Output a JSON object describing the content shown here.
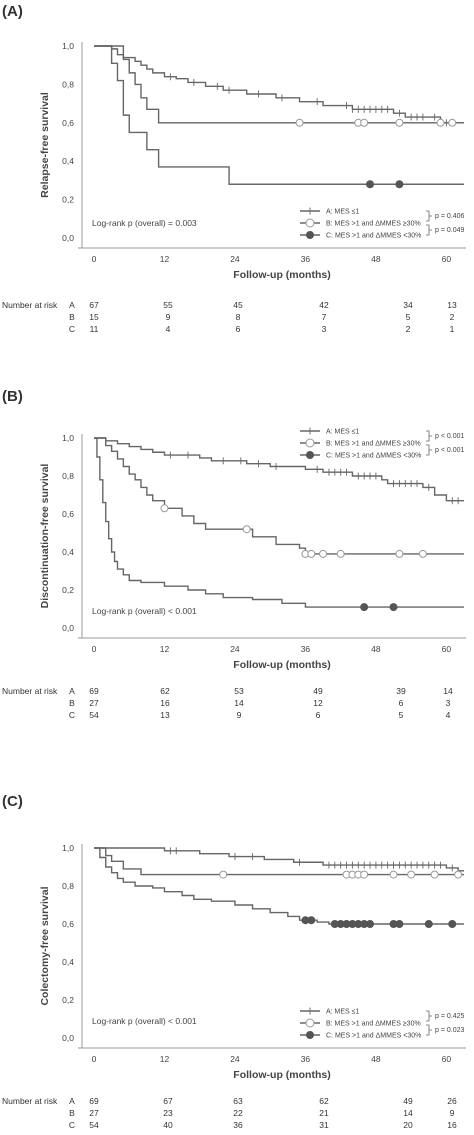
{
  "chart_data": [
    {
      "type": "line",
      "panel_label": "(A)",
      "ylabel": "Relapse-free survival",
      "xlabel": "Follow-up (months)",
      "x_ticks": [
        "0",
        "12",
        "24",
        "36",
        "48",
        "60"
      ],
      "y_ticks": [
        "0,0",
        "0,2",
        "0,4",
        "0,6",
        "0,8",
        "1,0"
      ],
      "xlim": [
        0,
        63
      ],
      "ylim": [
        0,
        1
      ],
      "logrank_text": "Log-rank p (overall) = 0.003",
      "legend_position": "bottom-right",
      "series": [
        {
          "name": "A: MES ≤1",
          "marker": "plus",
          "steps": [
            [
              0,
              1.0
            ],
            [
              3,
              0.985
            ],
            [
              4,
              0.955
            ],
            [
              5,
              0.94
            ],
            [
              7,
              0.92
            ],
            [
              8,
              0.9
            ],
            [
              9,
              0.88
            ],
            [
              10,
              0.86
            ],
            [
              12,
              0.84
            ],
            [
              14,
              0.83
            ],
            [
              16,
              0.81
            ],
            [
              19,
              0.79
            ],
            [
              22,
              0.77
            ],
            [
              26,
              0.75
            ],
            [
              31,
              0.73
            ],
            [
              35,
              0.71
            ],
            [
              39,
              0.69
            ],
            [
              44,
              0.67
            ],
            [
              51,
              0.65
            ],
            [
              53,
              0.63
            ],
            [
              57,
              0.63
            ],
            [
              59,
              0.6
            ],
            [
              63,
              0.6
            ]
          ],
          "censored": [
            13,
            17,
            21,
            23,
            28,
            32,
            38,
            43,
            44,
            45,
            46,
            47,
            48,
            49,
            50,
            52,
            54,
            55,
            56,
            58,
            60
          ]
        },
        {
          "name": "B: MES >1 and ΔMMES ≥30%",
          "marker": "open-circle",
          "steps": [
            [
              0,
              1.0
            ],
            [
              5,
              0.93
            ],
            [
              6,
              0.86
            ],
            [
              7,
              0.8
            ],
            [
              8,
              0.73
            ],
            [
              9,
              0.67
            ],
            [
              11,
              0.6
            ],
            [
              63,
              0.6
            ]
          ],
          "censored": [
            35,
            45,
            46,
            52,
            59,
            61
          ]
        },
        {
          "name": "C: MES >1 and ΔMMES <30%",
          "marker": "filled-circle",
          "steps": [
            [
              0,
              1.0
            ],
            [
              3,
              0.91
            ],
            [
              4,
              0.82
            ],
            [
              5,
              0.64
            ],
            [
              6,
              0.55
            ],
            [
              9,
              0.46
            ],
            [
              11,
              0.37
            ],
            [
              23,
              0.28
            ],
            [
              63,
              0.28
            ]
          ],
          "censored": [
            47,
            52
          ]
        }
      ],
      "pairwise_p": [
        "p = 0.406",
        "p = 0.049"
      ],
      "risk_table": {
        "header": "Number at risk",
        "rows": [
          {
            "label": "A",
            "values": [
              "67",
              "55",
              "45",
              "42",
              "34",
              "13"
            ]
          },
          {
            "label": "B",
            "values": [
              "15",
              "9",
              "8",
              "7",
              "5",
              "2"
            ]
          },
          {
            "label": "C",
            "values": [
              "11",
              "4",
              "6",
              "3",
              "2",
              "1"
            ]
          }
        ]
      }
    },
    {
      "type": "line",
      "panel_label": "(B)",
      "ylabel": "Discontinuation-free survival",
      "xlabel": "Follow-up (months)",
      "x_ticks": [
        "0",
        "12",
        "24",
        "36",
        "48",
        "60"
      ],
      "y_ticks": [
        "0,0",
        "0,2",
        "0,4",
        "0,6",
        "0,8",
        "1,0"
      ],
      "xlim": [
        0,
        63
      ],
      "ylim": [
        0,
        1
      ],
      "logrank_text": "Log-rank p (overall) < 0.001",
      "legend_position": "top-right",
      "series": [
        {
          "name": "A: MES ≤1",
          "marker": "plus",
          "steps": [
            [
              0,
              1.0
            ],
            [
              2,
              0.985
            ],
            [
              4,
              0.97
            ],
            [
              6,
              0.955
            ],
            [
              8,
              0.94
            ],
            [
              10,
              0.925
            ],
            [
              12,
              0.91
            ],
            [
              18,
              0.895
            ],
            [
              20,
              0.88
            ],
            [
              26,
              0.865
            ],
            [
              30,
              0.85
            ],
            [
              36,
              0.835
            ],
            [
              39,
              0.82
            ],
            [
              44,
              0.8
            ],
            [
              49,
              0.78
            ],
            [
              50,
              0.76
            ],
            [
              56,
              0.74
            ],
            [
              58,
              0.7
            ],
            [
              60,
              0.67
            ],
            [
              63,
              0.67
            ]
          ],
          "censored": [
            13,
            16,
            22,
            25,
            28,
            31,
            38,
            40,
            41,
            42,
            43,
            45,
            46,
            47,
            48,
            51,
            52,
            53,
            54,
            55,
            57,
            61,
            62
          ]
        },
        {
          "name": "B: MES >1 and ΔMMES ≥30%",
          "marker": "open-circle",
          "steps": [
            [
              0,
              1.0
            ],
            [
              2,
              0.96
            ],
            [
              3,
              0.93
            ],
            [
              4,
              0.89
            ],
            [
              5,
              0.85
            ],
            [
              6,
              0.81
            ],
            [
              7,
              0.78
            ],
            [
              8,
              0.74
            ],
            [
              9,
              0.7
            ],
            [
              10,
              0.67
            ],
            [
              12,
              0.63
            ],
            [
              15,
              0.59
            ],
            [
              17,
              0.55
            ],
            [
              19,
              0.52
            ],
            [
              27,
              0.48
            ],
            [
              31,
              0.44
            ],
            [
              35,
              0.42
            ],
            [
              36,
              0.39
            ],
            [
              63,
              0.39
            ]
          ],
          "censored": [
            12,
            26,
            36,
            37,
            39,
            42,
            52,
            56
          ]
        },
        {
          "name": "C: MES >1 and ΔMMES <30%",
          "marker": "filled-circle",
          "steps": [
            [
              0,
              1.0
            ],
            [
              0.5,
              0.9
            ],
            [
              1,
              0.78
            ],
            [
              1.5,
              0.66
            ],
            [
              2,
              0.56
            ],
            [
              2.5,
              0.47
            ],
            [
              3,
              0.4
            ],
            [
              3.5,
              0.35
            ],
            [
              4,
              0.31
            ],
            [
              5,
              0.28
            ],
            [
              6,
              0.25
            ],
            [
              8,
              0.24
            ],
            [
              12,
              0.22
            ],
            [
              16,
              0.2
            ],
            [
              19,
              0.18
            ],
            [
              22,
              0.16
            ],
            [
              27,
              0.15
            ],
            [
              32,
              0.13
            ],
            [
              36,
              0.11
            ],
            [
              63,
              0.11
            ]
          ],
          "censored": [
            46,
            51
          ]
        }
      ],
      "pairwise_p": [
        "p < 0.001",
        "p < 0.001"
      ],
      "risk_table": {
        "header": "Number at risk",
        "rows": [
          {
            "label": "A",
            "values": [
              "69",
              "62",
              "53",
              "49",
              "39",
              "14"
            ]
          },
          {
            "label": "B",
            "values": [
              "27",
              "16",
              "14",
              "12",
              "6",
              "3"
            ]
          },
          {
            "label": "C",
            "values": [
              "54",
              "13",
              "9",
              "6",
              "5",
              "4"
            ]
          }
        ]
      }
    },
    {
      "type": "line",
      "panel_label": "(C)",
      "ylabel": "Colectomy-free survival",
      "xlabel": "Follow-up (months)",
      "x_ticks": [
        "0",
        "12",
        "24",
        "36",
        "48",
        "60"
      ],
      "y_ticks": [
        "0,0",
        "0,2",
        "0,4",
        "0,6",
        "0,8",
        "1,0"
      ],
      "xlim": [
        0,
        63
      ],
      "ylim": [
        0,
        1
      ],
      "logrank_text": "Log-rank p (overall) < 0.001",
      "legend_position": "bottom-right",
      "series": [
        {
          "name": "A: MES ≤1",
          "marker": "plus",
          "steps": [
            [
              0,
              1.0
            ],
            [
              12,
              0.985
            ],
            [
              18,
              0.97
            ],
            [
              23,
              0.955
            ],
            [
              29,
              0.94
            ],
            [
              34,
              0.925
            ],
            [
              39,
              0.91
            ],
            [
              60,
              0.895
            ],
            [
              62,
              0.88
            ],
            [
              63,
              0.88
            ]
          ],
          "censored": [
            13,
            14,
            24,
            27,
            35,
            40,
            41,
            42,
            43,
            44,
            45,
            46,
            47,
            48,
            49,
            50,
            51,
            52,
            53,
            54,
            55,
            56,
            57,
            58,
            59,
            61
          ]
        },
        {
          "name": "B: MES >1 and ΔMMES ≥30%",
          "marker": "open-circle",
          "steps": [
            [
              0,
              1.0
            ],
            [
              2,
              0.96
            ],
            [
              3,
              0.93
            ],
            [
              5,
              0.89
            ],
            [
              8,
              0.86
            ],
            [
              63,
              0.86
            ]
          ],
          "censored": [
            22,
            43,
            44,
            45,
            46,
            51,
            54,
            58,
            62
          ]
        },
        {
          "name": "C: MES >1 and ΔMMES <30%",
          "marker": "filled-circle",
          "steps": [
            [
              0,
              1.0
            ],
            [
              1,
              0.95
            ],
            [
              2,
              0.9
            ],
            [
              3,
              0.87
            ],
            [
              4,
              0.84
            ],
            [
              5,
              0.82
            ],
            [
              7,
              0.8
            ],
            [
              10,
              0.79
            ],
            [
              12,
              0.77
            ],
            [
              15,
              0.75
            ],
            [
              17,
              0.73
            ],
            [
              20,
              0.72
            ],
            [
              24,
              0.7
            ],
            [
              27,
              0.68
            ],
            [
              30,
              0.66
            ],
            [
              33,
              0.64
            ],
            [
              35,
              0.62
            ],
            [
              38,
              0.61
            ],
            [
              40,
              0.6
            ],
            [
              63,
              0.6
            ]
          ],
          "censored": [
            36,
            37,
            41,
            42,
            43,
            44,
            45,
            46,
            47,
            51,
            52,
            57,
            61
          ]
        }
      ],
      "pairwise_p": [
        "p = 0.425",
        "p = 0.023"
      ],
      "risk_table": {
        "header": "Number at risk",
        "rows": [
          {
            "label": "A",
            "values": [
              "69",
              "67",
              "63",
              "62",
              "49",
              "26"
            ]
          },
          {
            "label": "B",
            "values": [
              "27",
              "23",
              "22",
              "21",
              "14",
              "9"
            ]
          },
          {
            "label": "C",
            "values": [
              "54",
              "40",
              "36",
              "31",
              "20",
              "16"
            ]
          }
        ]
      }
    }
  ],
  "colors": {
    "curve": "#666666",
    "axis": "#999999",
    "text": "#444444",
    "filled_marker": "#555555",
    "open_marker": "#999999"
  }
}
